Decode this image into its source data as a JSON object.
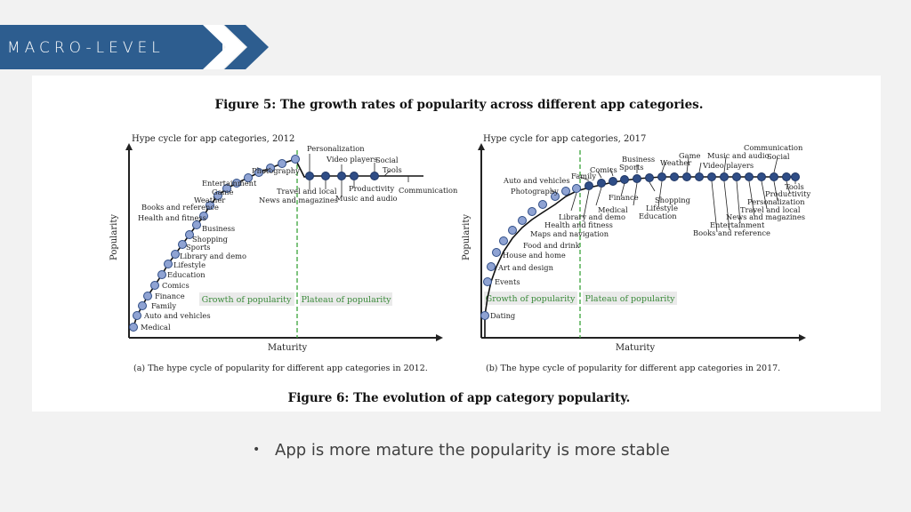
{
  "header": {
    "section_label": "MACRO-LEVEL",
    "banner_color": "#2d5d8f",
    "arrow_color": "#2d5d8f"
  },
  "figure": {
    "top_title": "Figure 5: The growth rates of popularity across different app categories.",
    "bottom_title": "Figure 6: The evolution of app category popularity.",
    "accent_color": "#3a5a95",
    "dot_fill_2012": "#8fa3d3",
    "dot_fill_2017": "#2f4d86",
    "divider_color": "#3aa33a",
    "left": {
      "title": "Hype cycle for app categories, 2012",
      "y_axis": "Popularity",
      "x_axis": "Maturity",
      "caption": "(a) The hype cycle of popularity for different app categories in 2012.",
      "phase_growth": "Growth of popularity",
      "phase_plateau": "Plateau of popularity",
      "labels": {
        "medical": "Medical",
        "auto": "Auto and vehicles",
        "family": "Family",
        "finance": "Finance",
        "comics": "Comics",
        "education": "Education",
        "lifestyle": "Lifestyle",
        "library": "Library and demo",
        "sports": "Sports",
        "shopping": "Shopping",
        "business": "Business",
        "health": "Health and fitness",
        "books": "Books and reference",
        "weather": "Weather",
        "game": "Game",
        "entertainment": "Entertainment",
        "photography": "Photography",
        "personalization": "Personalization",
        "video": "Video players",
        "social": "Social",
        "tools": "Tools",
        "travel": "Travel and local",
        "news": "News and magazines",
        "productivity": "Productivity",
        "music": "Music and audio",
        "communication": "Communication"
      }
    },
    "right": {
      "title": "Hype cycle for app categories, 2017",
      "y_axis": "Popularity",
      "x_axis": "Maturity",
      "caption": "(b) The hype cycle of popularity for different app categories in 2017.",
      "phase_growth": "Growth of popularity",
      "phase_plateau": "Plateau of popularity",
      "labels": {
        "dating": "Dating",
        "events": "Events",
        "art": "Art and design",
        "house": "House and home",
        "food": "Food and drink",
        "maps": "Maps and navigation",
        "health": "Health and fitness",
        "library": "Library and demo",
        "medical": "Medical",
        "finance": "Finance",
        "shopping": "Shopping",
        "lifestyle": "Lifestyle",
        "education": "Education",
        "auto": "Auto and vehicles",
        "photography": "Photography",
        "family": "Family",
        "comics": "Comics",
        "sports": "Sports",
        "business": "Business",
        "weather": "Weather",
        "game": "Game",
        "music": "Music and audio",
        "video": "Video players",
        "communication": "Communication",
        "social": "Social",
        "tools": "Tools",
        "productivity": "Productivity",
        "personalization": "Personalization",
        "travel": "Travel and local",
        "news": "News and magazines",
        "entertainment": "Entertainment",
        "books": "Books and reference"
      }
    }
  },
  "bullets": {
    "marker": "•",
    "item_1": "App is more mature the popularity is more stable"
  }
}
